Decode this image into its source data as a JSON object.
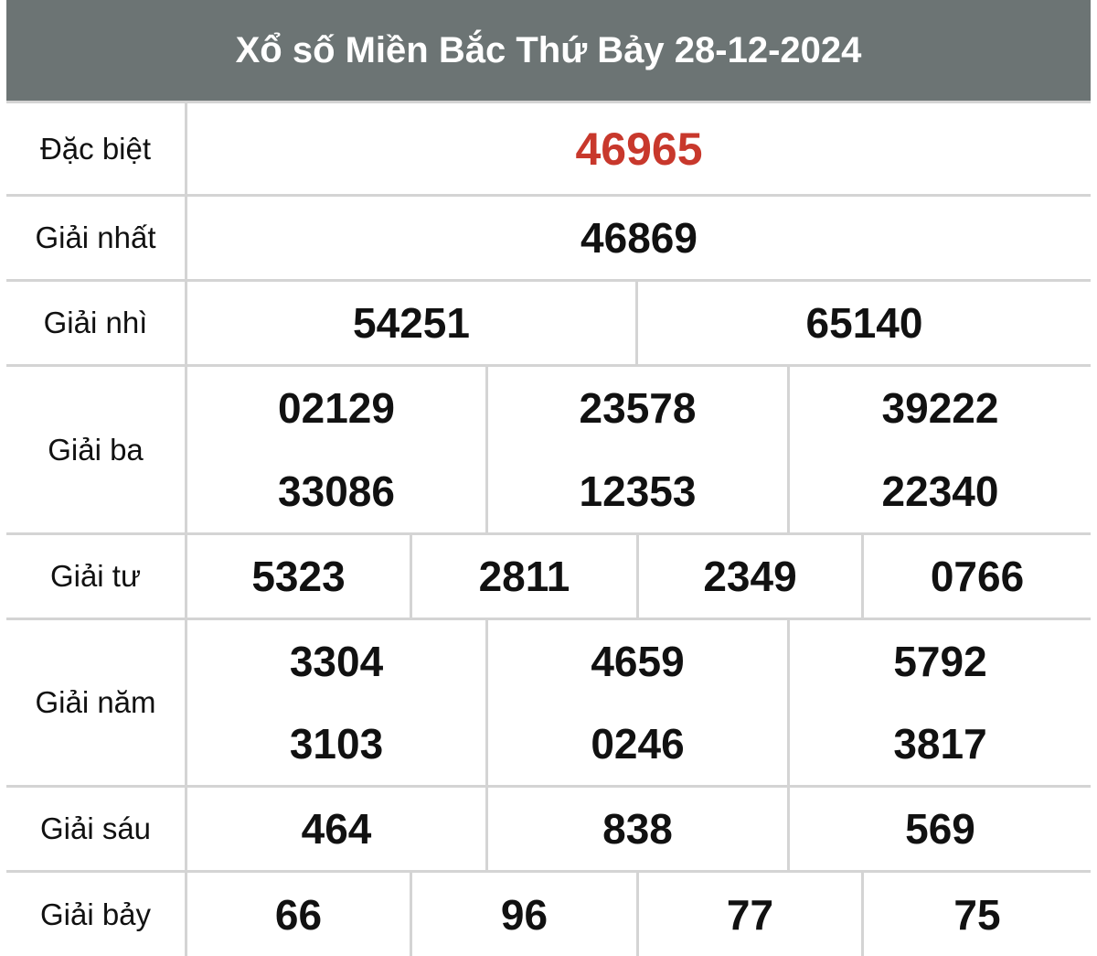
{
  "title": "Xổ số Miền Bắc Thứ Bảy 28-12-2024",
  "accent_color": "#c8382c",
  "prizes": [
    {
      "label": "Đặc biệt",
      "numbers": [
        [
          "46965"
        ]
      ]
    },
    {
      "label": "Giải nhất",
      "numbers": [
        [
          "46869"
        ]
      ]
    },
    {
      "label": "Giải nhì",
      "numbers": [
        [
          "54251"
        ],
        [
          "65140"
        ]
      ]
    },
    {
      "label": "Giải ba",
      "numbers": [
        [
          "02129",
          "33086"
        ],
        [
          "23578",
          "12353"
        ],
        [
          "39222",
          "22340"
        ]
      ]
    },
    {
      "label": "Giải tư",
      "numbers": [
        [
          "5323"
        ],
        [
          "2811"
        ],
        [
          "2349"
        ],
        [
          "0766"
        ]
      ]
    },
    {
      "label": "Giải năm",
      "numbers": [
        [
          "3304",
          "3103"
        ],
        [
          "4659",
          "0246"
        ],
        [
          "5792",
          "3817"
        ]
      ]
    },
    {
      "label": "Giải sáu",
      "numbers": [
        [
          "464"
        ],
        [
          "838"
        ],
        [
          "569"
        ]
      ]
    },
    {
      "label": "Giải bảy",
      "numbers": [
        [
          "66"
        ],
        [
          "96"
        ],
        [
          "77"
        ],
        [
          "75"
        ]
      ]
    }
  ]
}
